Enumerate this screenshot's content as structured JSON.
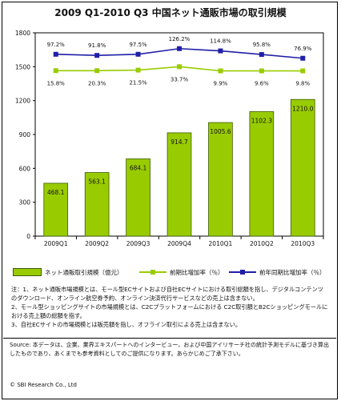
{
  "title": "2009 Q1-2010 Q3 中国ネット通販市場の取引規模",
  "chart_data": {
    "type": "bar",
    "categories": [
      "2009Q1",
      "2009Q2",
      "2009Q3",
      "2009Q4",
      "2010Q1",
      "2010Q2",
      "2010Q3"
    ],
    "bar_series": {
      "name": "ネット通販取引規模（億元）",
      "values": [
        468.1,
        563.1,
        684.1,
        914.7,
        1005.6,
        1102.3,
        1210.0
      ],
      "labels": [
        "468.1",
        "563.1",
        "684.1",
        "914.7",
        "1005.6",
        "1102.3",
        "1210.0"
      ],
      "color": "#99cc00"
    },
    "line_series": [
      {
        "name": "前期比増加率（％）",
        "values": [
          15.8,
          20.3,
          21.5,
          33.7,
          9.9,
          9.6,
          9.8
        ],
        "labels": [
          "15.8%",
          "20.3%",
          "21.5%",
          "33.7%",
          "9.9%",
          "9.6%",
          "9.8%"
        ],
        "color": "#99cc00"
      },
      {
        "name": "前年同期比増加率（％）",
        "values": [
          97.2,
          91.8,
          97.5,
          126.2,
          114.8,
          95.8,
          76.9
        ],
        "labels": [
          "97.2%",
          "91.8%",
          "97.5%",
          "126.2%",
          "114.8%",
          "95.8%",
          "76.9%"
        ],
        "color": "#1f1fa8"
      }
    ],
    "ylim": [
      0,
      1800
    ],
    "yticks": [
      "0",
      "300",
      "600",
      "900",
      "1200",
      "1500",
      "1800"
    ],
    "grid": false,
    "legend_position": "bottom"
  },
  "notes": [
    "注：1、ネット通販市場規模とは、モール型ECサイトおよび自社ECサイトにおける取引総額を指し、デジタルコンテンツのダウンロード、オンライン航空券予約、オンライン決済代行サービスなどの売上は含まない。",
    "2、モール型ショッピングサイトの市場規模とは、C2Cプラットフォームにおける C2C取引額とB2Cショッピングモールにおける売上額の総額を指す。",
    "3、自社ECサイトの市場規模とは販売額を指し、オフライン取引による売上は含まない。"
  ],
  "source": "Source: 本データは、企業、業界エキスパートへのインタービュー、および中国アイリサーチ社の統計予測モデルに基づき算出したものであり、あくまでも参考資料としてのご提供になります。あらかじめご了承下さい。",
  "copyright": "© SBI Research Co., Ltd"
}
